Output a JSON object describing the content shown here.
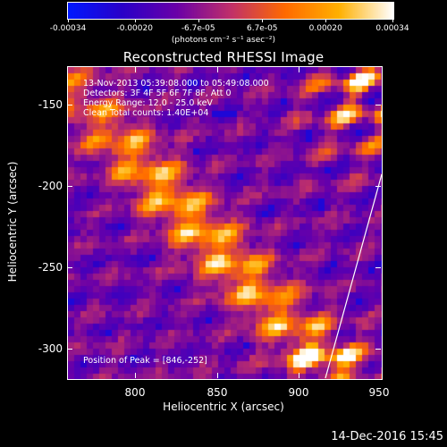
{
  "colorbar": {
    "tick_labels": [
      "-0.00034",
      "-0.00020",
      "-6.7e-05",
      "6.7e-05",
      "0.00020",
      "0.00034"
    ],
    "tick_values": [
      -0.00034,
      -0.0002,
      -6.7e-05,
      6.7e-05,
      0.0002,
      0.00034
    ],
    "range": [
      -0.00034,
      0.00034
    ],
    "units": "(photons cm⁻² s⁻¹ asec⁻²)",
    "colormap": [
      "#0018ff",
      "#2a00c8",
      "#6a00a8",
      "#c0306a",
      "#ff6a00",
      "#ffb000",
      "#ffffff"
    ]
  },
  "title": "Reconstructed RHESSI Image",
  "info": {
    "time": "13-Nov-2013 05:39:08.000 to 05:49:08.000",
    "detectors": "Detectors: 3F 4F 5F 6F 7F 8F, Att 0",
    "energy": "Energy Range: 12.0 - 25.0 keV",
    "clean": "Clean     Total counts: 1.40E+04",
    "peak": "Position of Peak = [846,-252]"
  },
  "axes": {
    "xlabel": "Heliocentric X (arcsec)",
    "ylabel": "Heliocentric Y (arcsec)",
    "xticks": [
      "800",
      "850",
      "900",
      "950"
    ],
    "yticks": [
      "-150",
      "-200",
      "-250",
      "-300"
    ],
    "xlim": [
      760,
      950
    ],
    "ylim": [
      -320,
      -130
    ]
  },
  "timestamp": "14-Dec-2016 15:45"
}
